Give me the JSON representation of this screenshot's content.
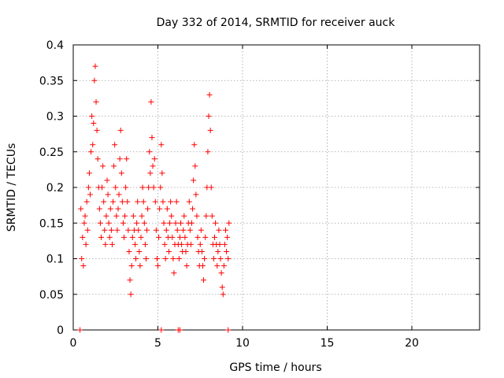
{
  "chart_data": {
    "type": "scatter",
    "title": "Day 332 of 2014, SRMTID for receiver auck",
    "xlabel": "GPS time / hours",
    "ylabel": "SRMTID / TECUs",
    "xlim": [
      0,
      24
    ],
    "ylim": [
      0,
      0.4
    ],
    "xticks": [
      0,
      5,
      10,
      15,
      20
    ],
    "xtick_labels": [
      "0",
      "5",
      "10",
      "15",
      "20"
    ],
    "yticks": [
      0,
      0.05,
      0.1,
      0.15,
      0.2,
      0.25,
      0.3,
      0.35,
      0.4
    ],
    "ytick_labels": [
      "0",
      "0.05",
      "0.1",
      "0.15",
      "0.2",
      "0.25",
      "0.3",
      "0.35",
      "0.4"
    ],
    "grid": true,
    "marker": "+",
    "color": "#ff0000",
    "series": [
      {
        "points": [
          [
            0.45,
            0.17
          ],
          [
            0.5,
            0.1
          ],
          [
            0.55,
            0.13
          ],
          [
            0.6,
            0.09
          ],
          [
            0.65,
            0.15
          ],
          [
            0.7,
            0.16
          ],
          [
            0.75,
            0.12
          ],
          [
            0.8,
            0.18
          ],
          [
            0.85,
            0.14
          ],
          [
            0.9,
            0.2
          ],
          [
            0.95,
            0.22
          ],
          [
            1.0,
            0.19
          ],
          [
            1.05,
            0.25
          ],
          [
            1.1,
            0.3
          ],
          [
            1.15,
            0.26
          ],
          [
            1.2,
            0.29
          ],
          [
            1.25,
            0.35
          ],
          [
            1.3,
            0.37
          ],
          [
            1.35,
            0.32
          ],
          [
            1.4,
            0.28
          ],
          [
            1.45,
            0.24
          ],
          [
            1.5,
            0.2
          ],
          [
            1.55,
            0.17
          ],
          [
            1.6,
            0.15
          ],
          [
            1.65,
            0.13
          ],
          [
            1.7,
            0.2
          ],
          [
            1.75,
            0.23
          ],
          [
            1.8,
            0.18
          ],
          [
            1.85,
            0.14
          ],
          [
            1.9,
            0.12
          ],
          [
            1.95,
            0.16
          ],
          [
            2.0,
            0.21
          ],
          [
            2.05,
            0.19
          ],
          [
            2.1,
            0.15
          ],
          [
            2.15,
            0.13
          ],
          [
            2.2,
            0.17
          ],
          [
            2.25,
            0.14
          ],
          [
            2.3,
            0.12
          ],
          [
            2.35,
            0.18
          ],
          [
            2.4,
            0.23
          ],
          [
            2.45,
            0.26
          ],
          [
            2.5,
            0.2
          ],
          [
            2.55,
            0.16
          ],
          [
            2.6,
            0.14
          ],
          [
            2.65,
            0.17
          ],
          [
            2.7,
            0.19
          ],
          [
            2.75,
            0.24
          ],
          [
            2.8,
            0.28
          ],
          [
            2.85,
            0.22
          ],
          [
            2.9,
            0.18
          ],
          [
            2.95,
            0.15
          ],
          [
            3.0,
            0.13
          ],
          [
            3.05,
            0.16
          ],
          [
            3.1,
            0.2
          ],
          [
            3.15,
            0.24
          ],
          [
            3.2,
            0.18
          ],
          [
            3.25,
            0.14
          ],
          [
            3.3,
            0.11
          ],
          [
            3.35,
            0.07
          ],
          [
            3.4,
            0.05
          ],
          [
            3.45,
            0.09
          ],
          [
            3.5,
            0.13
          ],
          [
            3.55,
            0.16
          ],
          [
            3.6,
            0.14
          ],
          [
            3.65,
            0.12
          ],
          [
            3.7,
            0.1
          ],
          [
            3.75,
            0.15
          ],
          [
            3.8,
            0.18
          ],
          [
            3.85,
            0.14
          ],
          [
            3.9,
            0.11
          ],
          [
            3.95,
            0.09
          ],
          [
            4.0,
            0.13
          ],
          [
            4.05,
            0.16
          ],
          [
            4.1,
            0.2
          ],
          [
            4.15,
            0.18
          ],
          [
            4.2,
            0.15
          ],
          [
            4.25,
            0.12
          ],
          [
            4.3,
            0.1
          ],
          [
            4.35,
            0.14
          ],
          [
            4.4,
            0.17
          ],
          [
            4.45,
            0.2
          ],
          [
            4.5,
            0.25
          ],
          [
            4.55,
            0.22
          ],
          [
            4.6,
            0.32
          ],
          [
            4.65,
            0.27
          ],
          [
            4.7,
            0.23
          ],
          [
            4.75,
            0.2
          ],
          [
            4.8,
            0.24
          ],
          [
            4.85,
            0.18
          ],
          [
            4.9,
            0.14
          ],
          [
            4.95,
            0.1
          ],
          [
            5.0,
            0.09
          ],
          [
            5.05,
            0.13
          ],
          [
            5.1,
            0.17
          ],
          [
            5.15,
            0.2
          ],
          [
            5.2,
            0.26
          ],
          [
            5.25,
            0.22
          ],
          [
            5.3,
            0.18
          ],
          [
            5.35,
            0.15
          ],
          [
            5.4,
            0.12
          ],
          [
            5.45,
            0.1
          ],
          [
            5.5,
            0.14
          ],
          [
            5.55,
            0.17
          ],
          [
            5.6,
            0.13
          ],
          [
            5.65,
            0.11
          ],
          [
            5.7,
            0.15
          ],
          [
            5.75,
            0.18
          ],
          [
            5.8,
            0.16
          ],
          [
            5.85,
            0.13
          ],
          [
            5.9,
            0.1
          ],
          [
            5.95,
            0.08
          ],
          [
            6.0,
            0.12
          ],
          [
            6.05,
            0.15
          ],
          [
            6.1,
            0.18
          ],
          [
            6.15,
            0.14
          ],
          [
            6.2,
            0.12
          ],
          [
            6.25,
            0.1
          ],
          [
            6.3,
            0.13
          ],
          [
            6.35,
            0.15
          ],
          [
            6.4,
            0.12
          ],
          [
            6.45,
            0.11
          ],
          [
            6.5,
            0.14
          ],
          [
            6.55,
            0.16
          ],
          [
            6.6,
            0.13
          ],
          [
            6.65,
            0.11
          ],
          [
            6.7,
            0.09
          ],
          [
            6.75,
            0.12
          ],
          [
            6.8,
            0.15
          ],
          [
            6.85,
            0.18
          ],
          [
            6.9,
            0.14
          ],
          [
            6.95,
            0.12
          ],
          [
            7.0,
            0.15
          ],
          [
            7.05,
            0.17
          ],
          [
            7.1,
            0.21
          ],
          [
            7.15,
            0.26
          ],
          [
            7.2,
            0.23
          ],
          [
            7.25,
            0.19
          ],
          [
            7.3,
            0.16
          ],
          [
            7.35,
            0.13
          ],
          [
            7.4,
            0.11
          ],
          [
            7.45,
            0.09
          ],
          [
            7.5,
            0.12
          ],
          [
            7.55,
            0.14
          ],
          [
            7.6,
            0.11
          ],
          [
            7.65,
            0.09
          ],
          [
            7.7,
            0.07
          ],
          [
            7.75,
            0.1
          ],
          [
            7.8,
            0.13
          ],
          [
            7.85,
            0.16
          ],
          [
            7.9,
            0.2
          ],
          [
            7.95,
            0.25
          ],
          [
            8.0,
            0.3
          ],
          [
            8.05,
            0.33
          ],
          [
            8.1,
            0.28
          ],
          [
            8.15,
            0.2
          ],
          [
            8.2,
            0.16
          ],
          [
            8.25,
            0.12
          ],
          [
            8.3,
            0.1
          ],
          [
            8.35,
            0.13
          ],
          [
            8.4,
            0.15
          ],
          [
            8.45,
            0.12
          ],
          [
            8.5,
            0.09
          ],
          [
            8.55,
            0.11
          ],
          [
            8.6,
            0.14
          ],
          [
            8.65,
            0.12
          ],
          [
            8.7,
            0.1
          ],
          [
            8.75,
            0.08
          ],
          [
            8.8,
            0.06
          ],
          [
            8.85,
            0.05
          ],
          [
            8.9,
            0.09
          ],
          [
            8.95,
            0.12
          ],
          [
            9.0,
            0.14
          ],
          [
            9.05,
            0.11
          ],
          [
            9.1,
            0.13
          ],
          [
            9.15,
            0.1
          ],
          [
            9.2,
            0.15
          ]
        ]
      },
      {
        "points": [
          [
            0.4,
            0.0
          ],
          [
            5.2,
            0.0
          ],
          [
            6.2,
            0.0
          ],
          [
            6.3,
            0.0
          ],
          [
            9.15,
            0.0
          ]
        ]
      }
    ]
  }
}
